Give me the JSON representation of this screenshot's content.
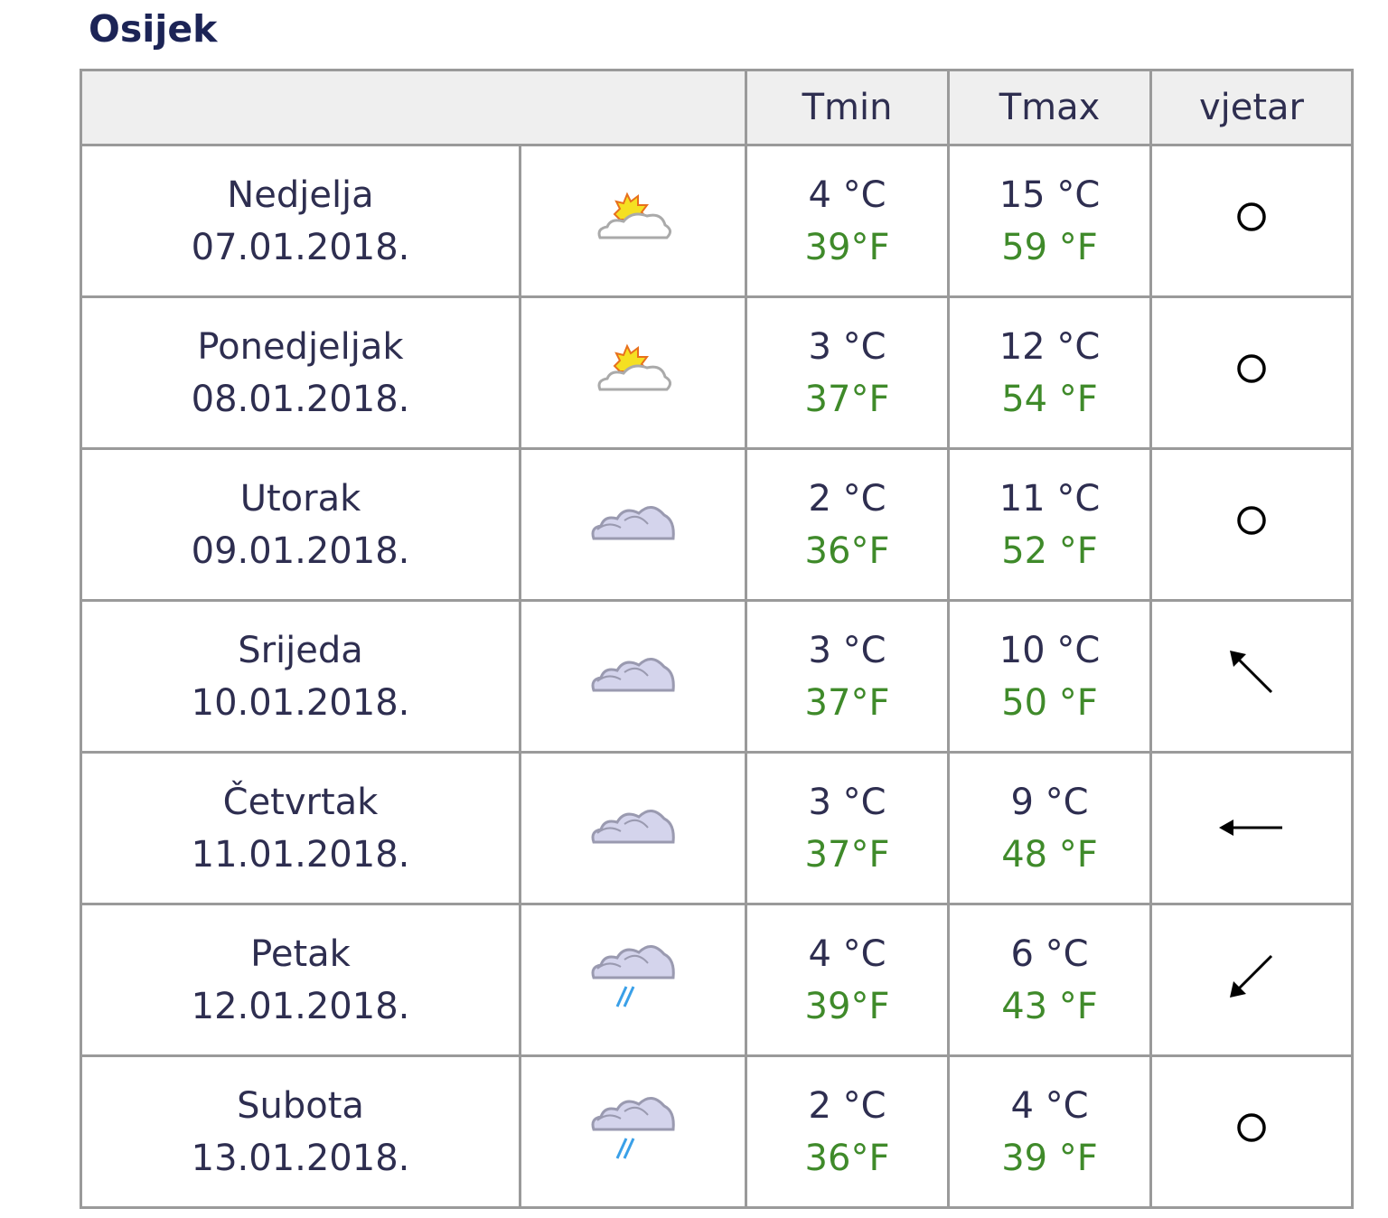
{
  "title": "Osijek",
  "header": {
    "blank": "",
    "tmin": "Tmin",
    "tmax": "Tmax",
    "wind": "vjetar"
  },
  "colors": {
    "title": "#1c2456",
    "text": "#2e2e50",
    "fahrenheit": "#3f8a2a",
    "header_bg": "#efefef",
    "border": "#9a9a9a"
  },
  "rows": [
    {
      "day": "Nedjelja",
      "date": "07.01.2018.",
      "weather_icon": "partly-cloudy-icon",
      "tmin_c": "4 °C",
      "tmin_f": "39°F",
      "tmax_c": "15 °C",
      "tmax_f": "59 °F",
      "wind_icon": "calm-circle-icon"
    },
    {
      "day": "Ponedjeljak",
      "date": "08.01.2018.",
      "weather_icon": "partly-cloudy-icon",
      "tmin_c": "3 °C",
      "tmin_f": "37°F",
      "tmax_c": "12 °C",
      "tmax_f": "54 °F",
      "wind_icon": "calm-circle-icon"
    },
    {
      "day": "Utorak",
      "date": "09.01.2018.",
      "weather_icon": "cloudy-icon",
      "tmin_c": "2 °C",
      "tmin_f": "36°F",
      "tmax_c": "11 °C",
      "tmax_f": "52 °F",
      "wind_icon": "calm-circle-icon"
    },
    {
      "day": "Srijeda",
      "date": "10.01.2018.",
      "weather_icon": "cloudy-icon",
      "tmin_c": "3 °C",
      "tmin_f": "37°F",
      "tmax_c": "10 °C",
      "tmax_f": "50 °F",
      "wind_icon": "arrow-up-left-icon"
    },
    {
      "day": "Četvrtak",
      "date": "11.01.2018.",
      "weather_icon": "cloudy-icon",
      "tmin_c": "3 °C",
      "tmin_f": "37°F",
      "tmax_c": "9 °C",
      "tmax_f": "48 °F",
      "wind_icon": "arrow-left-icon"
    },
    {
      "day": "Petak",
      "date": "12.01.2018.",
      "weather_icon": "rain-icon",
      "tmin_c": "4 °C",
      "tmin_f": "39°F",
      "tmax_c": "6 °C",
      "tmax_f": "43 °F",
      "wind_icon": "arrow-down-left-icon"
    },
    {
      "day": "Subota",
      "date": "13.01.2018.",
      "weather_icon": "rain-icon",
      "tmin_c": "2 °C",
      "tmin_f": "36°F",
      "tmax_c": "4 °C",
      "tmax_f": "39 °F",
      "wind_icon": "calm-circle-icon"
    }
  ]
}
